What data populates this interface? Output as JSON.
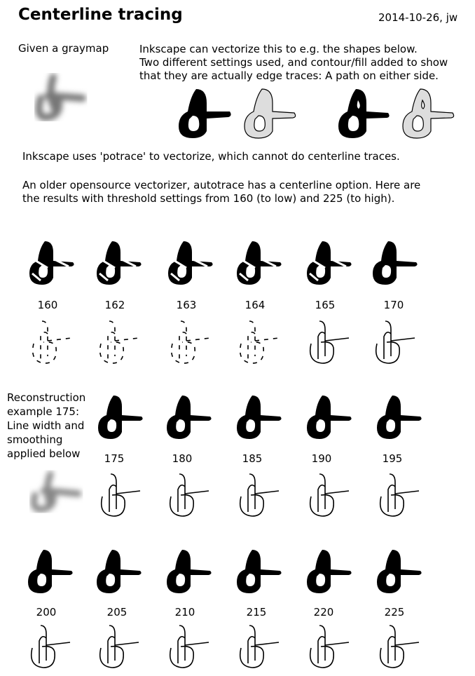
{
  "header": {
    "title": "Centerline tracing",
    "date": "2014-10-26, jw"
  },
  "intro": {
    "given": "Given a graymap",
    "line1": "Inkscape can vectorize this to e.g. the shapes below.",
    "line2": "Two different settings used, and contour/fill added to show",
    "line3": "that they are actually edge traces:  A path on either side."
  },
  "body": {
    "potrace": "Inkscape uses 'potrace' to vectorize, which cannot do centerline traces.",
    "autotrace1": "An older opensource vectorizer, autotrace has a centerline option. Here are",
    "autotrace2": "the results with threshold settings from 160 (to low) and 225 (to high)."
  },
  "sidebar": {
    "l1": "Reconstruction",
    "l2": "example 175:",
    "l3": "Line width and",
    "l4": "smoothing",
    "l5": "applied below"
  },
  "rows": {
    "row1": [
      "160",
      "162",
      "163",
      "164",
      "165",
      "170"
    ],
    "row2": [
      "175",
      "180",
      "185",
      "190",
      "195"
    ],
    "row3": [
      "200",
      "205",
      "210",
      "215",
      "220",
      "225"
    ]
  }
}
